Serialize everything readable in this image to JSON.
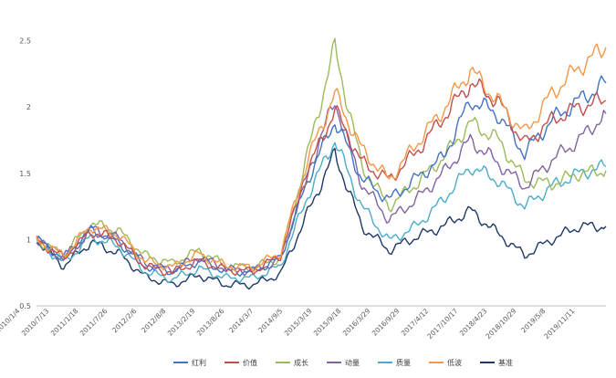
{
  "chart_data": {
    "type": "line",
    "title": "",
    "xlabel": "",
    "ylabel": "",
    "ylim": [
      0.5,
      2.6
    ],
    "y_ticks": [
      "0.5",
      "1",
      "1.5",
      "2",
      "2.5"
    ],
    "y_tick_values": [
      0.5,
      1,
      1.5,
      2,
      2.5
    ],
    "grid": false,
    "legend_position": "bottom",
    "x_tick_labels": [
      "2010/1/4",
      "2010/7/13",
      "2011/1/18",
      "2011/7/26",
      "2012/2/6",
      "2012/8/8",
      "2013/2/19",
      "2013/8/26",
      "2014/3/7",
      "2014/9/5",
      "2015/3/19",
      "2015/9/18",
      "2016/3/29",
      "2016/9/29",
      "2017/4/12",
      "2017/10/17",
      "2018/4/23",
      "2018/10/29",
      "2019/5/8",
      "2019/11/11"
    ],
    "x": [
      "2010/1/4",
      "2010/7/13",
      "2011/1/18",
      "2011/7/26",
      "2012/2/6",
      "2012/8/8",
      "2013/2/19",
      "2013/8/26",
      "2014/3/7",
      "2014/9/5",
      "2015/3/19",
      "2015/6/12",
      "2015/9/18",
      "2016/3/29",
      "2016/9/29",
      "2017/4/12",
      "2017/10/17",
      "2018/4/23",
      "2018/10/29",
      "2019/5/8",
      "2019/11/11",
      "2020/3/31"
    ],
    "series": [
      {
        "name": "红利",
        "color": "#4472c4",
        "values": [
          1.0,
          0.86,
          1.07,
          0.99,
          0.8,
          0.76,
          0.84,
          0.76,
          0.76,
          0.86,
          1.45,
          1.9,
          1.46,
          1.3,
          1.46,
          1.62,
          2.05,
          1.95,
          1.65,
          1.9,
          2.05,
          2.18
        ]
      },
      {
        "name": "价值",
        "color": "#c0504d",
        "values": [
          1.0,
          0.86,
          1.06,
          1.0,
          0.8,
          0.75,
          0.84,
          0.77,
          0.76,
          0.88,
          1.52,
          1.98,
          1.58,
          1.45,
          1.66,
          1.92,
          2.18,
          2.05,
          1.72,
          1.9,
          2.0,
          2.05
        ]
      },
      {
        "name": "成长",
        "color": "#9bbb59",
        "values": [
          1.0,
          0.88,
          1.12,
          1.07,
          0.88,
          0.82,
          0.92,
          0.8,
          0.79,
          0.86,
          1.65,
          2.45,
          1.55,
          1.25,
          1.42,
          1.62,
          1.88,
          1.76,
          1.45,
          1.42,
          1.5,
          1.52
        ]
      },
      {
        "name": "动量",
        "color": "#8064a2",
        "values": [
          1.0,
          0.85,
          1.08,
          1.01,
          0.82,
          0.77,
          0.87,
          0.78,
          0.76,
          0.85,
          1.5,
          2.05,
          1.42,
          1.15,
          1.3,
          1.5,
          1.75,
          1.58,
          1.4,
          1.6,
          1.75,
          1.95
        ]
      },
      {
        "name": "质量",
        "color": "#4bacc6",
        "values": [
          1.0,
          0.82,
          1.02,
          0.95,
          0.76,
          0.7,
          0.78,
          0.71,
          0.71,
          0.8,
          1.33,
          1.75,
          1.25,
          0.99,
          1.1,
          1.3,
          1.55,
          1.45,
          1.25,
          1.4,
          1.5,
          1.55
        ]
      },
      {
        "name": "低波",
        "color": "#f79646",
        "values": [
          1.0,
          0.88,
          1.1,
          1.04,
          0.84,
          0.79,
          0.89,
          0.8,
          0.79,
          0.9,
          1.6,
          2.1,
          1.68,
          1.45,
          1.72,
          1.98,
          2.28,
          2.05,
          1.8,
          2.1,
          2.3,
          2.45
        ]
      },
      {
        "name": "基准",
        "color": "#1f3864",
        "values": [
          1.0,
          0.8,
          0.98,
          0.9,
          0.72,
          0.66,
          0.73,
          0.66,
          0.66,
          0.74,
          1.2,
          1.65,
          1.1,
          0.92,
          1.02,
          1.1,
          1.22,
          1.05,
          0.88,
          1.0,
          1.1,
          1.1
        ]
      }
    ]
  }
}
